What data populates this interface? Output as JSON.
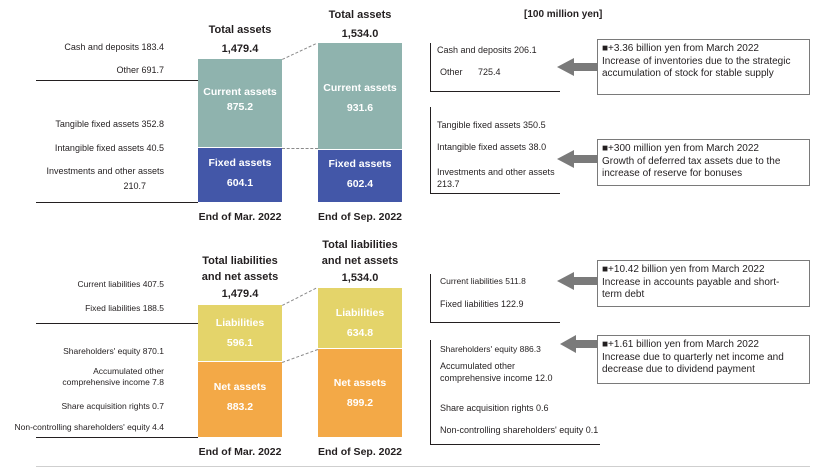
{
  "unit": "[100 million yen]",
  "assets": {
    "col1": {
      "title": "Total assets",
      "total": "1,479.4",
      "period": "End of Mar. 2022",
      "current_label": "Current assets",
      "current_value": "875.2",
      "fixed_label": "Fixed assets",
      "fixed_value": "604.1"
    },
    "col2": {
      "title": "Total assets",
      "total": "1,534.0",
      "period": "End of Sep. 2022",
      "current_label": "Current assets",
      "current_value": "931.6",
      "fixed_label": "Fixed assets",
      "fixed_value": "602.4"
    },
    "left_items": [
      "Cash and deposits 183.4",
      "Other 691.7",
      "Tangible fixed assets 352.8",
      "Intangible fixed assets 40.5",
      "Investments and other assets",
      "210.7"
    ],
    "right_items": [
      "Cash and deposits 206.1",
      "Other",
      "725.4",
      "Tangible fixed assets 350.5",
      "Intangible fixed assets 38.0",
      "Investments and other assets",
      "213.7"
    ],
    "note1": {
      "l1": "■+3.36 billion yen from March 2022",
      "l2": "Increase of inventories due to the strategic",
      "l3": "accumulation of stock for stable supply"
    },
    "note2": {
      "l1": "■+300 million yen from March 2022",
      "l2": "Growth of deferred tax assets due to the",
      "l3": "increase of reserve for bonuses"
    }
  },
  "liabilities": {
    "col1": {
      "title1": "Total liabilities",
      "title2": "and net assets",
      "total": "1,479.4",
      "period": "End of Mar. 2022",
      "liab_label": "Liabilities",
      "liab_value": "596.1",
      "net_label": "Net assets",
      "net_value": "883.2"
    },
    "col2": {
      "title1": "Total liabilities",
      "title2": "and net assets",
      "total": "1,534.0",
      "period": "End of Sep. 2022",
      "liab_label": "Liabilities",
      "liab_value": "634.8",
      "net_label": "Net assets",
      "net_value": "899.2"
    },
    "left_items": [
      "Current liabilities 407.5",
      "Fixed liabilities 188.5",
      "Shareholders' equity 870.1",
      "Accumulated other",
      "comprehensive income 7.8",
      "Share acquisition rights 0.7",
      "Non-controlling shareholders' equity 4.4"
    ],
    "right_items": [
      "Current liabilities 511.8",
      "Fixed liabilities 122.9",
      "Shareholders' equity 886.3",
      "Accumulated other",
      "comprehensive income 12.0",
      "Share acquisition rights 0.6",
      "Non-controlling shareholders' equity  0.1"
    ],
    "note3": {
      "l1": "■+10.42 billion yen from March 2022",
      "l2": "Increase in accounts payable and short-",
      "l3": "term debt"
    },
    "note4": {
      "l1": "■+1.61 billion yen from March 2022",
      "l2": "Increase due to quarterly net income and",
      "l3": "decrease due to dividend payment"
    }
  },
  "chart_data": [
    {
      "type": "bar",
      "title": "Total assets",
      "categories": [
        "End of Mar. 2022",
        "End of Sep. 2022"
      ],
      "series": [
        {
          "name": "Current assets",
          "values": [
            875.2,
            931.6
          ]
        },
        {
          "name": "Fixed assets",
          "values": [
            604.1,
            602.4
          ]
        }
      ],
      "totals": [
        1479.4,
        1534.0
      ],
      "colors": {
        "current": "#8fb3ae",
        "fixed": "#4357a8"
      }
    },
    {
      "type": "bar",
      "title": "Total liabilities and net assets",
      "categories": [
        "End of Mar. 2022",
        "End of Sep. 2022"
      ],
      "series": [
        {
          "name": "Liabilities",
          "values": [
            596.1,
            634.8
          ]
        },
        {
          "name": "Net assets",
          "values": [
            883.2,
            899.2
          ]
        }
      ],
      "totals": [
        1479.4,
        1534.0
      ],
      "colors": {
        "liabilities": "#e4d46a",
        "net": "#f3a947"
      }
    }
  ]
}
